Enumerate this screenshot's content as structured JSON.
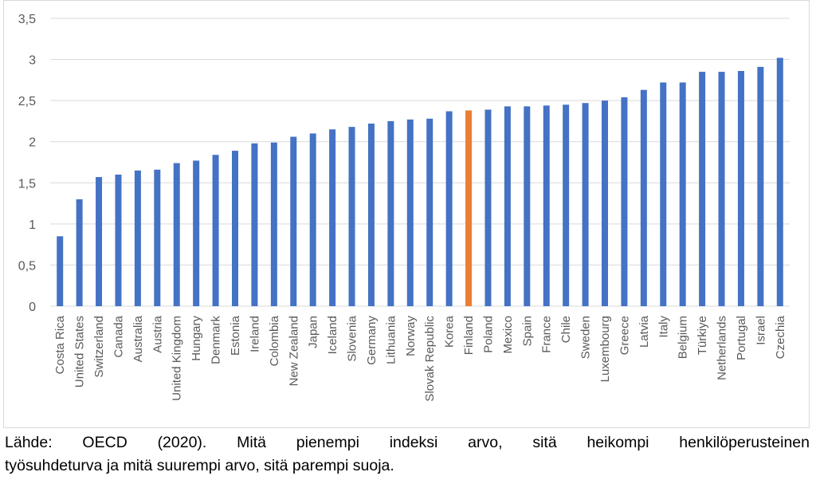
{
  "chart_data": {
    "type": "bar",
    "categories": [
      "Costa Rica",
      "United States",
      "Switzerland",
      "Canada",
      "Australia",
      "Austria",
      "United Kingdom",
      "Hungary",
      "Denmark",
      "Estonia",
      "Ireland",
      "Colombia",
      "New Zealand",
      "Japan",
      "Iceland",
      "Slovenia",
      "Germany",
      "Lithuania",
      "Norway",
      "Slovak Republic",
      "Korea",
      "Finland",
      "Poland",
      "Mexico",
      "Spain",
      "France",
      "Chile",
      "Sweden",
      "Luxembourg",
      "Greece",
      "Latvia",
      "Italy",
      "Belgium",
      "Türkiye",
      "Netherlands",
      "Portugal",
      "Israel",
      "Czechia"
    ],
    "values": [
      0.85,
      1.3,
      1.57,
      1.6,
      1.65,
      1.66,
      1.74,
      1.77,
      1.84,
      1.89,
      1.98,
      1.99,
      2.06,
      2.1,
      2.15,
      2.18,
      2.22,
      2.25,
      2.27,
      2.28,
      2.37,
      2.38,
      2.39,
      2.43,
      2.43,
      2.44,
      2.45,
      2.47,
      2.5,
      2.54,
      2.63,
      2.72,
      2.72,
      2.85,
      2.85,
      2.86,
      2.91,
      3.02
    ],
    "highlight": "Finland",
    "ylim": [
      0,
      3.5
    ],
    "yticks": [
      "0",
      "0,5",
      "1",
      "1,5",
      "2",
      "2,5",
      "3",
      "3,5"
    ],
    "grid": true,
    "colors": {
      "bar": "#4472c4",
      "highlight": "#ed7d31",
      "grid": "#d9d9d9",
      "axis_text": "#595959"
    },
    "title": "",
    "xlabel": "",
    "ylabel": ""
  },
  "caption": {
    "line1": "Lähde: OECD (2020). Mitä pienempi indeksi arvo, sitä heikompi henkilöperusteinen",
    "line2": "työsuhdeturva ja mitä suurempi arvo, sitä parempi suoja."
  }
}
